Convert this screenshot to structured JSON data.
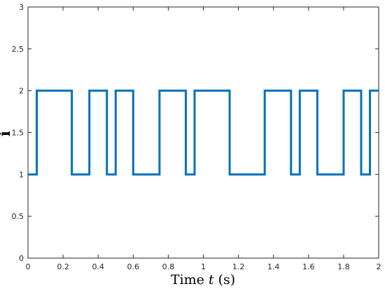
{
  "chart_data": {
    "type": "line",
    "step": "post",
    "xlim": [
      0,
      2
    ],
    "ylim": [
      0,
      3
    ],
    "xticks": [
      0,
      0.2,
      0.4,
      0.6,
      0.8,
      1,
      1.2,
      1.4,
      1.6,
      1.8,
      2
    ],
    "yticks": [
      0,
      0.5,
      1,
      1.5,
      2,
      2.5,
      3
    ],
    "xtick_labels": [
      "0",
      "0.2",
      "0.4",
      "0.6",
      "0.8",
      "1",
      "1.2",
      "1.4",
      "1.6",
      "1.8",
      "2"
    ],
    "ytick_labels": [
      "0",
      "0.5",
      "1",
      "1.5",
      "2",
      "2.5",
      "3"
    ],
    "xlabel": {
      "prefix": "Time ",
      "var": "t",
      "unit": "(s)"
    },
    "ylabel": "i",
    "grid": false,
    "line_color": "#0072BD",
    "series": [
      {
        "x": [
          0,
          0.05,
          0.25,
          0.35,
          0.45,
          0.5,
          0.6,
          0.75,
          0.9,
          0.95,
          1.15,
          1.35,
          1.5,
          1.55,
          1.65,
          1.8,
          1.9,
          1.95,
          2.0
        ],
        "y": [
          1,
          2,
          1,
          2,
          1,
          2,
          1,
          2,
          1,
          2,
          1,
          2,
          1,
          2,
          1,
          2,
          1,
          2,
          2
        ]
      }
    ]
  }
}
